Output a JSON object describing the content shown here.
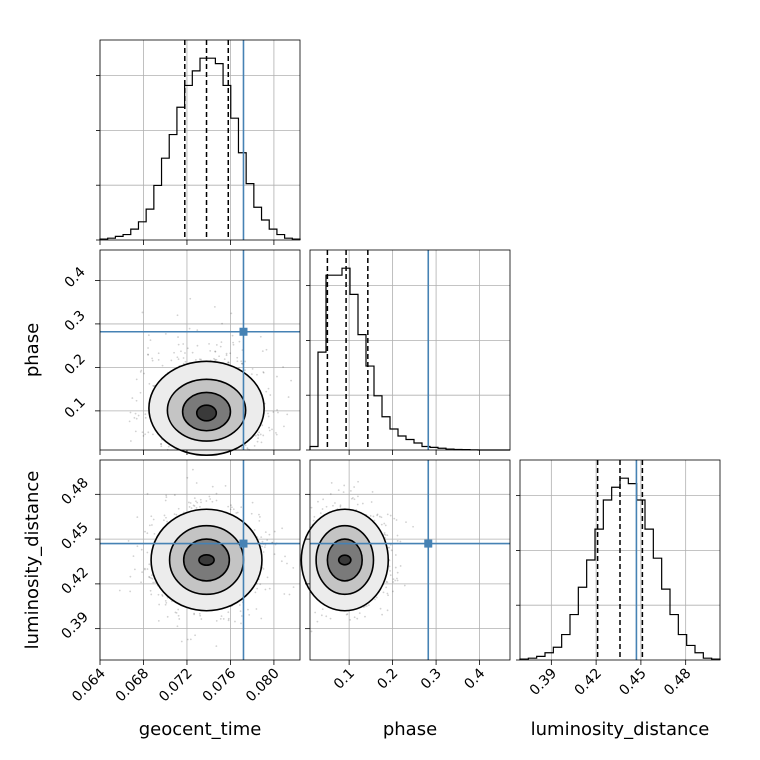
{
  "chart_data": {
    "type": "corner",
    "parameters": [
      "geocent_time",
      "phase",
      "luminosity_distance"
    ],
    "truths": {
      "geocent_time": 0.0772,
      "phase": 0.282,
      "luminosity_distance": 0.447
    },
    "truth_color": "#4682b4",
    "quantiles": {
      "geocent_time": [
        0.0718,
        0.0738,
        0.0758
      ],
      "phase": [
        0.05,
        0.093,
        0.143
      ],
      "luminosity_distance": [
        0.421,
        0.436,
        0.451
      ]
    },
    "ranges": {
      "geocent_time": [
        0.064,
        0.0824
      ],
      "phase": [
        0.01,
        0.47
      ],
      "luminosity_distance": [
        0.369,
        0.503
      ]
    },
    "ticks": {
      "geocent_time": [
        0.064,
        0.068,
        0.072,
        0.076,
        0.08
      ],
      "phase": [
        0.1,
        0.2,
        0.3,
        0.4
      ],
      "luminosity_distance": [
        0.39,
        0.42,
        0.45,
        0.48
      ]
    },
    "tick_labels": {
      "geocent_time": [
        "0.064",
        "0.068",
        "0.072",
        "0.076",
        "0.080"
      ],
      "phase": [
        "0.1",
        "0.2",
        "0.3",
        "0.4"
      ],
      "luminosity_distance": [
        "0.39",
        "0.42",
        "0.45",
        "0.48"
      ]
    },
    "histograms": {
      "geocent_time": [
        0.5,
        1,
        2,
        3,
        6,
        10,
        17,
        30,
        45,
        58,
        73,
        85,
        93,
        100,
        100,
        97,
        85,
        67,
        48,
        31,
        18,
        11,
        6,
        3,
        1,
        0.5
      ],
      "phase": [
        2,
        56,
        100,
        100,
        104,
        89,
        66,
        48,
        31,
        19,
        12,
        8,
        6,
        4,
        2,
        1.5,
        1,
        0.5,
        0.3,
        0.2,
        0.1,
        0,
        0,
        0,
        0
      ],
      "luminosity_distance": [
        0.5,
        1,
        2,
        4,
        7,
        14,
        25,
        40,
        55,
        72,
        88,
        95,
        100,
        97,
        88,
        72,
        56,
        39,
        25,
        14,
        8,
        4,
        1,
        0.5
      ]
    },
    "contours": [
      {
        "x": "geocent_time",
        "y": "phase",
        "center": [
          0.0738,
          0.093
        ],
        "radii": [
          [
            0.0009,
            0.018
          ],
          [
            0.0022,
            0.044
          ],
          [
            0.0036,
            0.071
          ],
          [
            0.0053,
            0.108
          ]
        ]
      },
      {
        "x": "geocent_time",
        "y": "luminosity_distance",
        "center": [
          0.0738,
          0.436
        ],
        "radii": [
          [
            0.0007,
            0.0035
          ],
          [
            0.0021,
            0.014
          ],
          [
            0.0034,
            0.023
          ],
          [
            0.0051,
            0.034
          ]
        ]
      },
      {
        "x": "phase",
        "y": "luminosity_distance",
        "center": [
          0.09,
          0.436
        ],
        "radii": [
          [
            0.014,
            0.0032
          ],
          [
            0.04,
            0.014
          ],
          [
            0.066,
            0.023
          ],
          [
            0.1,
            0.034
          ]
        ]
      }
    ],
    "grid": true
  }
}
